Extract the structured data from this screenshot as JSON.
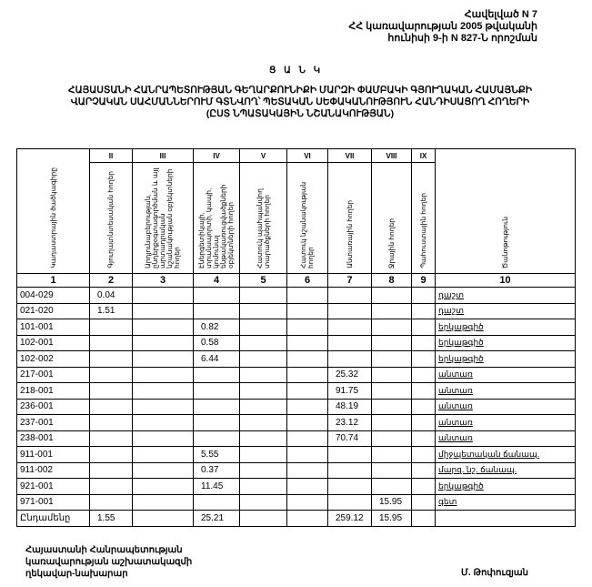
{
  "appendix": [
    "Հավելված N 7",
    "ՀՀ կառավարության 2005 թվականի",
    "հունիսի 9-ի N 827-Ն որոշման"
  ],
  "list_title": "Ց Ա Ն Կ",
  "heading": [
    "ՀԱՅԱՍՏԱՆԻ ՀԱՆՐԱՊԵՏՈՒԹՅԱՆ ԳԵՂԱՐՔՈՒՆԻՔԻ ՄԱՐԶԻ ՓԱՄԲԱԿԻ ԳՅՈՒՂԱԿԱՆ ՀԱՄԱՅՆՔԻ",
    "ՎԱՐՉԱԿԱՆ ՍԱՀՄԱՆՆԵՐՈՒՄ ԳՏՆՎՈՂ՝ ՊԵՏԱԿԱՆ ՍԵՓԱԿԱՆՈՒԹՅՈՒՆ ՀԱՆԴԻՍԱՑՈՂ ՀՈՂԵՐԻ",
    "(ԸՍՏ ՆՊԱՏԱԿԱՅԻՆ ՆՇԱՆԱԿՈՒԹՅԱՆ)"
  ],
  "table": {
    "roman": [
      "",
      "II",
      "III",
      "IV",
      "V",
      "VI",
      "VII",
      "VIII",
      "IX",
      ""
    ],
    "headers": [
      "Կադաստրային ծածկագիրը",
      "Գյուղատնտեսական հողեր",
      "Արդյունաբերության, ընդերքօգտագործման և այլ արտադրական նշանակության օբյեկտների հողեր",
      "Էներգետիկայի, տրանսպորտի, կապի, կոմունալ ենթակառուցվածքների օբյեկտների հողեր",
      "Հատուկ պահպանվող տարածքների հողեր",
      "Հատուկ նշանակության հողեր",
      "Անտառային հողեր",
      "Ջրային հողեր",
      "Պահուստային հողեր",
      "Ծանոթություն"
    ],
    "numbers": [
      "1",
      "2",
      "3",
      "4",
      "5",
      "6",
      "7",
      "8",
      "9",
      "10"
    ],
    "rows": [
      [
        "004-029",
        "0.04",
        "",
        "",
        "",
        "",
        "",
        "",
        "",
        "դաշտ"
      ],
      [
        "021-020",
        "1.51",
        "",
        "",
        "",
        "",
        "",
        "",
        "",
        "դաշտ"
      ],
      [
        "101-001",
        "",
        "",
        "0.82",
        "",
        "",
        "",
        "",
        "",
        "երկաթգիծ"
      ],
      [
        "102-001",
        "",
        "",
        "0.58",
        "",
        "",
        "",
        "",
        "",
        "երկաթգիծ"
      ],
      [
        "102-002",
        "",
        "",
        "6.44",
        "",
        "",
        "",
        "",
        "",
        "երկաթգիծ"
      ],
      [
        "217-001",
        "",
        "",
        "",
        "",
        "",
        "25.32",
        "",
        "",
        "անտառ"
      ],
      [
        "218-001",
        "",
        "",
        "",
        "",
        "",
        "91.75",
        "",
        "",
        "անտառ"
      ],
      [
        "236-001",
        "",
        "",
        "",
        "",
        "",
        "48.19",
        "",
        "",
        "անտառ"
      ],
      [
        "237-001",
        "",
        "",
        "",
        "",
        "",
        "23.12",
        "",
        "",
        "անտառ"
      ],
      [
        "238-001",
        "",
        "",
        "",
        "",
        "",
        "70.74",
        "",
        "",
        "անտառ"
      ],
      [
        "911-001",
        "",
        "",
        "5.55",
        "",
        "",
        "",
        "",
        "",
        "միջպետական ճանապ."
      ],
      [
        "911-002",
        "",
        "",
        "0.37",
        "",
        "",
        "",
        "",
        "",
        "մարզ. նշ. ճանապ."
      ],
      [
        "921-001",
        "",
        "",
        "11.45",
        "",
        "",
        "",
        "",
        "",
        "երկաթգիծ"
      ],
      [
        "971-001",
        "",
        "",
        "",
        "",
        "",
        "",
        "15.95",
        "",
        "գետ"
      ],
      [
        "Ընդամենը",
        "1.55",
        "",
        "25.21",
        "",
        "",
        "259.12",
        "15.95",
        "",
        ""
      ]
    ]
  },
  "footer": {
    "position": [
      "Հայաստանի Հանրապետության",
      "կառավարության աշխատակազմի",
      "ղեկավար-նախարար"
    ],
    "signatory": "Մ. Թոփուզյան"
  }
}
